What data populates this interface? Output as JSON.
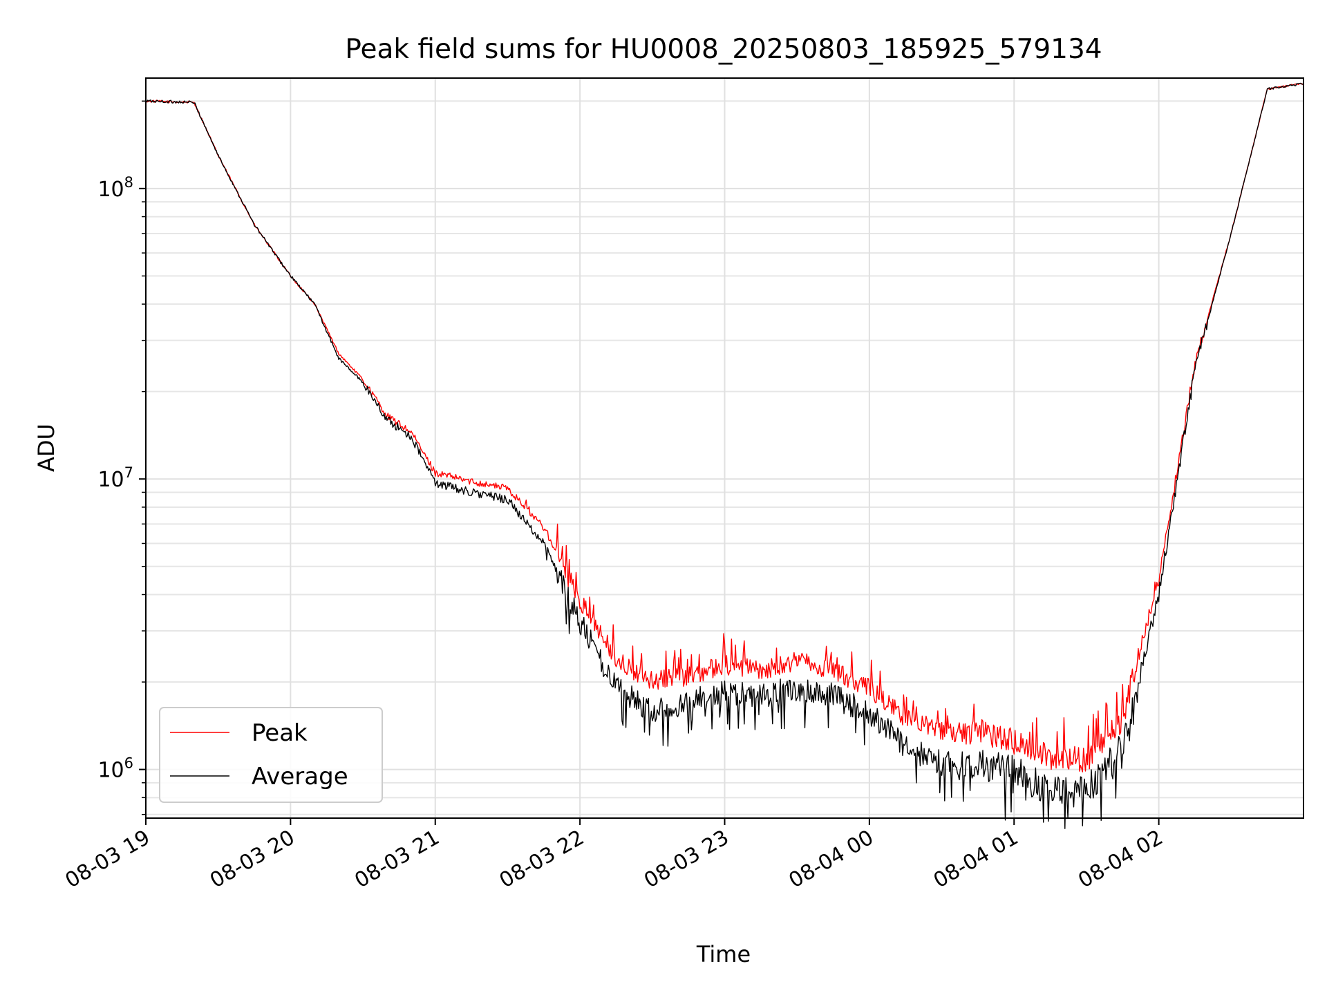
{
  "chart_data": {
    "type": "line",
    "title": "Peak field sums for HU0008_20250803_185925_579134",
    "xlabel": "Time",
    "ylabel": "ADU",
    "yscale": "log",
    "ylim": [
      680000,
      240000000
    ],
    "xlim": [
      "2025-08-03 19:00",
      "2025-08-04 03:00"
    ],
    "grid": true,
    "legend_position": "lower-left",
    "x_tick_labels": [
      "08-03 19",
      "08-03 20",
      "08-03 21",
      "08-03 22",
      "08-03 23",
      "08-04 00",
      "08-04 01",
      "08-04 02"
    ],
    "y_tick_labels": [
      {
        "base": "10",
        "exp": "6",
        "value": 1000000
      },
      {
        "base": "10",
        "exp": "7",
        "value": 10000000
      },
      {
        "base": "10",
        "exp": "8",
        "value": 100000000
      }
    ],
    "x": [
      "2025-08-03 19:00",
      "2025-08-03 19:20",
      "2025-08-03 19:30",
      "2025-08-03 19:45",
      "2025-08-03 20:00",
      "2025-08-03 20:10",
      "2025-08-03 20:20",
      "2025-08-03 20:30",
      "2025-08-03 20:40",
      "2025-08-03 20:50",
      "2025-08-03 21:00",
      "2025-08-03 21:15",
      "2025-08-03 21:30",
      "2025-08-03 21:45",
      "2025-08-03 22:00",
      "2025-08-03 22:15",
      "2025-08-03 22:30",
      "2025-08-03 22:45",
      "2025-08-03 23:00",
      "2025-08-03 23:15",
      "2025-08-03 23:30",
      "2025-08-03 23:45",
      "2025-08-04 00:00",
      "2025-08-04 00:15",
      "2025-08-04 00:30",
      "2025-08-04 00:45",
      "2025-08-04 01:00",
      "2025-08-04 01:15",
      "2025-08-04 01:30",
      "2025-08-04 01:45",
      "2025-08-04 02:00",
      "2025-08-04 02:15",
      "2025-08-04 02:30",
      "2025-08-04 02:45",
      "2025-08-04 03:00"
    ],
    "series": [
      {
        "name": "Peak",
        "color": "#ff0000",
        "values": [
          200000000,
          198000000,
          130000000,
          75000000,
          50000000,
          40000000,
          27000000,
          22000000,
          16500000,
          14500000,
          10500000,
          9800000,
          9300000,
          6800000,
          3800000,
          2400000,
          2000000,
          2100000,
          2300000,
          2200000,
          2350000,
          2200000,
          1900000,
          1500000,
          1350000,
          1350000,
          1250000,
          1100000,
          1080000,
          1500000,
          4500000,
          25000000,
          70000000,
          220000000,
          230000000
        ]
      },
      {
        "name": "Average",
        "color": "#000000",
        "values": [
          200000000,
          198000000,
          130000000,
          75000000,
          50000000,
          40000000,
          26000000,
          21500000,
          16000000,
          14000000,
          9700000,
          9000000,
          8500000,
          6000000,
          3200000,
          1900000,
          1600000,
          1700000,
          1850000,
          1800000,
          1900000,
          1800000,
          1550000,
          1200000,
          1050000,
          1050000,
          980000,
          850000,
          840000,
          1200000,
          4000000,
          24000000,
          70000000,
          220000000,
          230000000
        ]
      }
    ]
  }
}
